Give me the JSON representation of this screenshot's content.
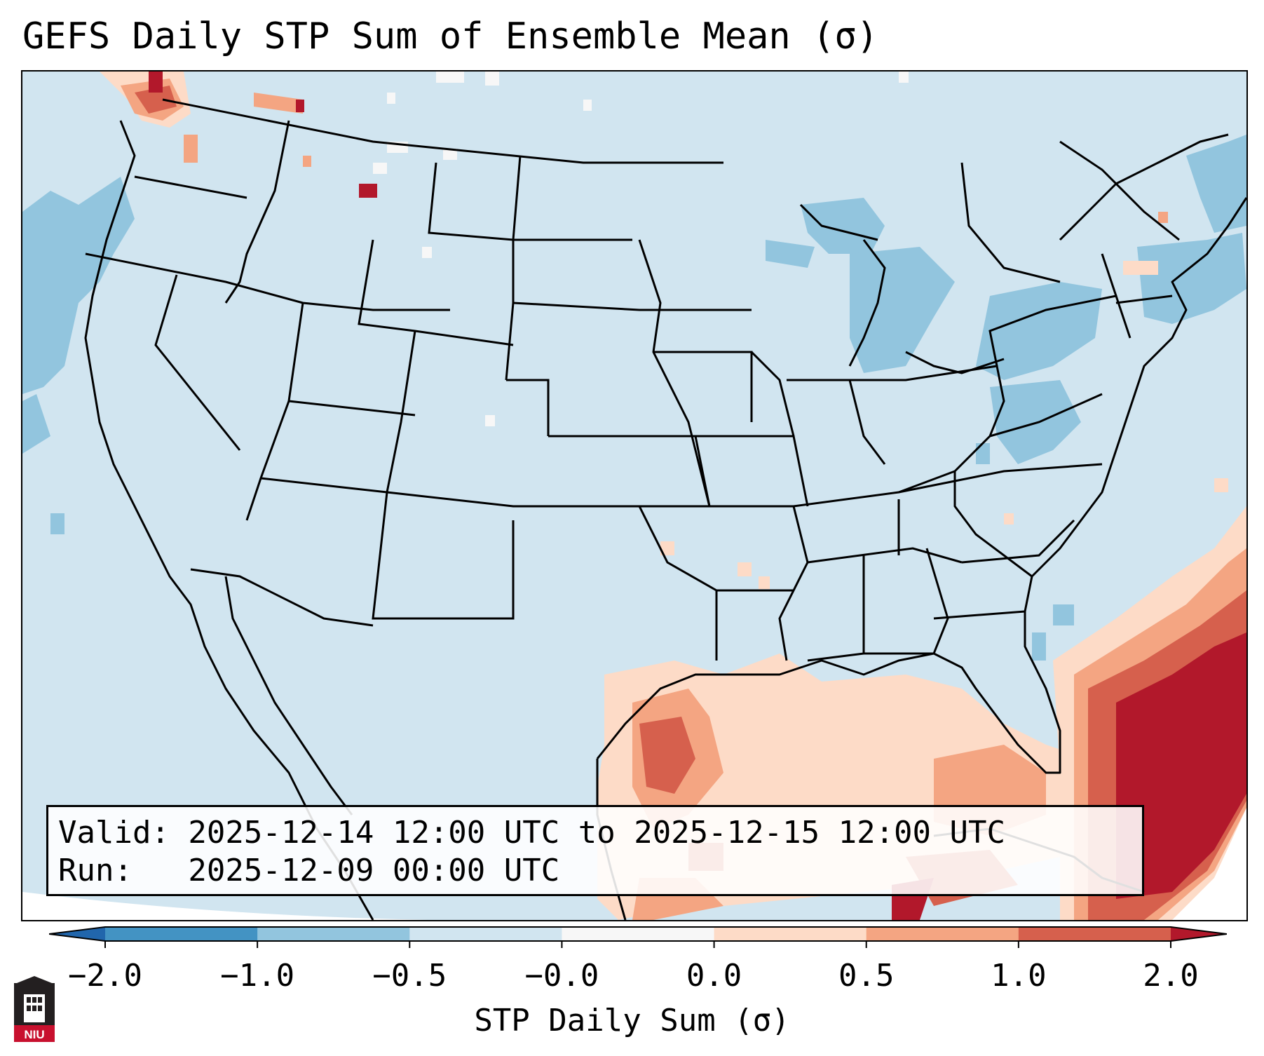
{
  "title": "GEFS Daily STP Sum of Ensemble Mean (σ)",
  "info": {
    "valid_line": "Valid: 2025-12-14 12:00 UTC to 2025-12-15 12:00 UTC",
    "run_line": "Run:   2025-12-09 00:00 UTC"
  },
  "colorbar": {
    "label": "STP Daily Sum (σ)",
    "ticks": [
      "−2.0",
      "−1.0",
      "−0.5",
      "−0.0",
      "0.0",
      "0.5",
      "1.0",
      "2.0"
    ],
    "colors": [
      "#4393c3",
      "#92c5de",
      "#d1e5f0",
      "#f7f7f7",
      "#fddbc7",
      "#f4a582",
      "#d6604d"
    ],
    "extend_low_color": "#2166ac",
    "extend_high_color": "#b2182b"
  },
  "map": {
    "background_color": "#d1e5f0",
    "region": "Contiguous United States with Gulf of Mexico and western Atlantic"
  },
  "logo": {
    "text": "NIU"
  }
}
